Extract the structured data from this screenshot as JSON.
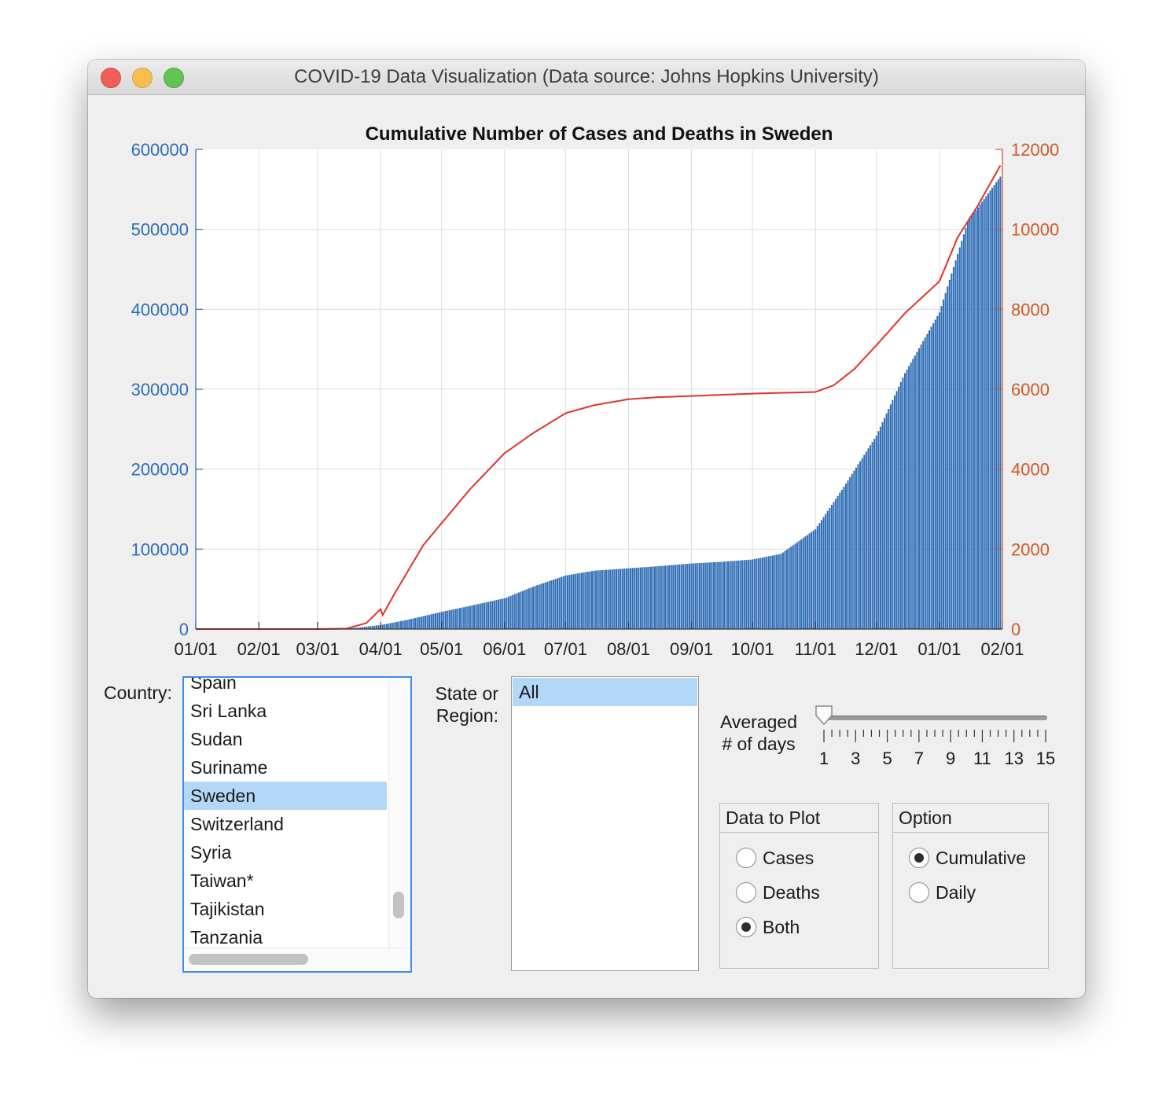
{
  "window": {
    "title": "COVID-19 Data Visualization (Data source: Johns Hopkins University)"
  },
  "colors": {
    "cases": "#2f6db5",
    "deaths": "#e0322b",
    "left_axis": "#2f6db5",
    "right_axis": "#cc5a2a"
  },
  "chart_data": {
    "type": "bar+line",
    "title": "Cumulative Number of Cases and Deaths in Sweden",
    "x_ticks": [
      "01/01",
      "02/01",
      "03/01",
      "04/01",
      "05/01",
      "06/01",
      "07/01",
      "08/01",
      "09/01",
      "10/01",
      "11/01",
      "12/01",
      "01/01",
      "02/01"
    ],
    "x_range": [
      "2020-01-01",
      "2021-02-01"
    ],
    "y_left": {
      "ticks": [
        "0",
        "100000",
        "200000",
        "300000",
        "400000",
        "500000",
        "600000"
      ],
      "lim": [
        0,
        600000
      ]
    },
    "y_right": {
      "ticks": [
        "0",
        "2000",
        "4000",
        "6000",
        "8000",
        "10000",
        "12000"
      ],
      "lim": [
        0,
        12000
      ]
    },
    "grid": true,
    "series": [
      {
        "kind": "bar",
        "axis": "left",
        "points": [
          [
            "2020-01-01",
            0
          ],
          [
            "2020-03-01",
            0
          ],
          [
            "2020-03-10",
            300
          ],
          [
            "2020-03-20",
            1600
          ],
          [
            "2020-04-01",
            5000
          ],
          [
            "2020-04-15",
            12000
          ],
          [
            "2020-05-01",
            21500
          ],
          [
            "2020-05-15",
            29000
          ],
          [
            "2020-06-01",
            38500
          ],
          [
            "2020-06-15",
            53000
          ],
          [
            "2020-07-01",
            67000
          ],
          [
            "2020-07-15",
            73000
          ],
          [
            "2020-08-01",
            76000
          ],
          [
            "2020-08-15",
            78500
          ],
          [
            "2020-09-01",
            82000
          ],
          [
            "2020-09-15",
            84000
          ],
          [
            "2020-10-01",
            87000
          ],
          [
            "2020-10-15",
            94000
          ],
          [
            "2020-11-01",
            125000
          ],
          [
            "2020-11-15",
            178000
          ],
          [
            "2020-12-01",
            242000
          ],
          [
            "2020-12-15",
            320000
          ],
          [
            "2021-01-01",
            396000
          ],
          [
            "2021-01-15",
            510000
          ],
          [
            "2021-01-31",
            566000
          ]
        ]
      },
      {
        "kind": "line",
        "axis": "right",
        "points": [
          [
            "2020-01-01",
            0
          ],
          [
            "2020-03-01",
            0
          ],
          [
            "2020-03-15",
            10
          ],
          [
            "2020-03-25",
            150
          ],
          [
            "2020-04-01",
            500
          ],
          [
            "2020-04-02",
            350
          ],
          [
            "2020-04-08",
            900
          ],
          [
            "2020-04-15",
            1500
          ],
          [
            "2020-04-22",
            2100
          ],
          [
            "2020-05-01",
            2650
          ],
          [
            "2020-05-15",
            3500
          ],
          [
            "2020-06-01",
            4400
          ],
          [
            "2020-06-15",
            4900
          ],
          [
            "2020-07-01",
            5400
          ],
          [
            "2020-07-15",
            5600
          ],
          [
            "2020-08-01",
            5750
          ],
          [
            "2020-08-15",
            5800
          ],
          [
            "2020-09-01",
            5830
          ],
          [
            "2020-09-15",
            5860
          ],
          [
            "2020-10-01",
            5890
          ],
          [
            "2020-10-15",
            5910
          ],
          [
            "2020-11-01",
            5930
          ],
          [
            "2020-11-10",
            6100
          ],
          [
            "2020-11-20",
            6500
          ],
          [
            "2020-12-01",
            7100
          ],
          [
            "2020-12-15",
            7900
          ],
          [
            "2021-01-01",
            8700
          ],
          [
            "2021-01-10",
            9800
          ],
          [
            "2021-01-20",
            10600
          ],
          [
            "2021-01-31",
            11600
          ]
        ]
      }
    ]
  },
  "controls": {
    "country_label": "Country:",
    "countries": [
      "Spain",
      "Sri Lanka",
      "Sudan",
      "Suriname",
      "Sweden",
      "Switzerland",
      "Syria",
      "Taiwan*",
      "Tajikistan",
      "Tanzania"
    ],
    "selected_country": "Sweden",
    "state_label_line1": "State or",
    "state_label_line2": "Region:",
    "states": [
      "All"
    ],
    "averaged_label_line1": "Averaged",
    "averaged_label_line2": "# of days",
    "slider": {
      "min": 1,
      "max": 15,
      "value": 1,
      "labels": [
        "1",
        "3",
        "5",
        "7",
        "9",
        "11",
        "13",
        "15"
      ]
    },
    "data_to_plot": {
      "title": "Data to Plot",
      "options": [
        "Cases",
        "Deaths",
        "Both"
      ],
      "selected": "Both"
    },
    "option": {
      "title": "Option",
      "options": [
        "Cumulative",
        "Daily"
      ],
      "selected": "Cumulative"
    }
  }
}
